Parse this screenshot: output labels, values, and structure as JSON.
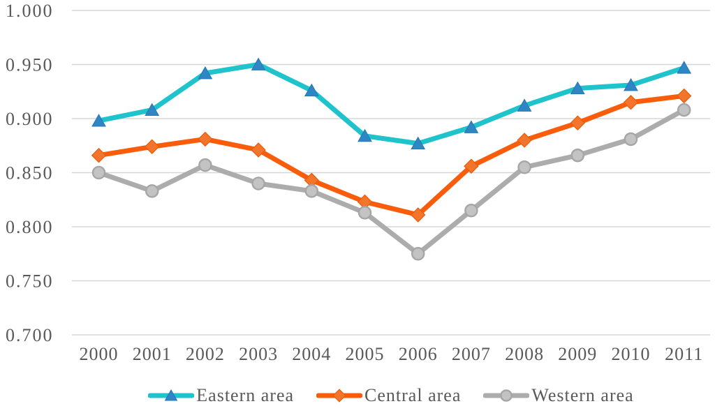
{
  "chart_data": {
    "type": "line",
    "title": "",
    "xlabel": "",
    "ylabel": "",
    "categories": [
      "2000",
      "2001",
      "2002",
      "2003",
      "2004",
      "2005",
      "2006",
      "2007",
      "2008",
      "2009",
      "2010",
      "2011"
    ],
    "y_ticks": [
      "1.000",
      "0.950",
      "0.900",
      "0.850",
      "0.800",
      "0.750",
      "0.700"
    ],
    "ylim": [
      0.7,
      1.0
    ],
    "y_step": 0.05,
    "grid": true,
    "legend_position": "bottom",
    "series": [
      {
        "name": "Eastern area",
        "marker": "triangle",
        "line_color": "#1EC3CC",
        "marker_color": "#2E86C5",
        "marker_border": "#2776B6",
        "values": [
          0.898,
          0.908,
          0.942,
          0.95,
          0.926,
          0.884,
          0.877,
          0.892,
          0.912,
          0.928,
          0.931,
          0.947
        ]
      },
      {
        "name": "Central area",
        "marker": "diamond",
        "line_color": "#F95D0B",
        "marker_color": "#F2752B",
        "marker_border": "#E85C0A",
        "values": [
          0.866,
          0.874,
          0.881,
          0.871,
          0.843,
          0.823,
          0.811,
          0.856,
          0.88,
          0.896,
          0.915,
          0.921
        ]
      },
      {
        "name": "Western area",
        "marker": "circle",
        "line_color": "#ACACAC",
        "marker_color": "#C3C3C3",
        "marker_border": "#A6A6A6",
        "values": [
          0.85,
          0.833,
          0.857,
          0.84,
          0.833,
          0.813,
          0.775,
          0.815,
          0.855,
          0.866,
          0.881,
          0.908
        ]
      }
    ]
  },
  "colors": {
    "grid": "#D6D6D6",
    "text": "#595959",
    "background": "#FFFFFF"
  }
}
